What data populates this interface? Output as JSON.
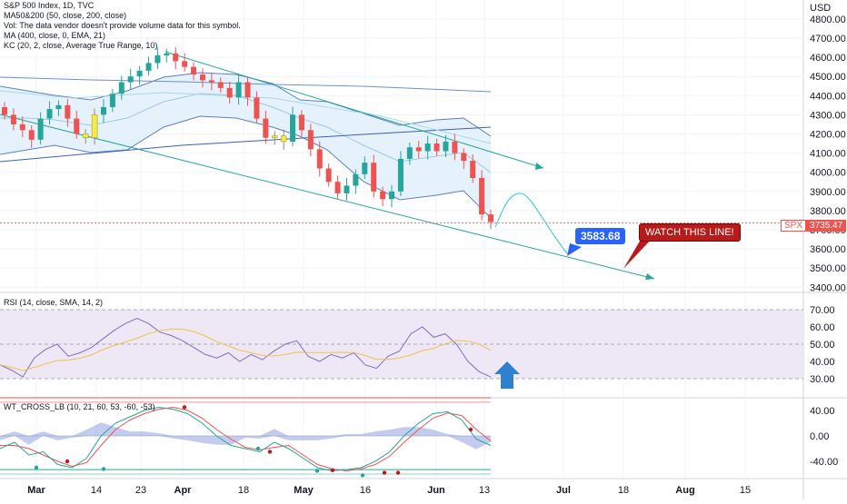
{
  "header": {
    "symbol_line": "S&P 500 Index, 1D, TVC",
    "indicators": [
      "MA50&200 (50, close, 200, close)",
      "Vol: The data vendor doesn't provide volume data for this symbol.",
      "MA (400, close, 0, EMA, 21)",
      "KC (20, 2, close, Average True Range, 10)"
    ]
  },
  "price_axis": {
    "currency": "USD",
    "ticks": [
      "4800.00",
      "4700.00",
      "4600.00",
      "4500.00",
      "4400.00",
      "4300.00",
      "4200.00",
      "4100.00",
      "4000.00",
      "3900.00",
      "3800.00",
      "3700.00",
      "3600.00",
      "3500.00",
      "3400.00"
    ]
  },
  "last_price": {
    "symbol": "SPX",
    "value": "3735.47"
  },
  "annotations": {
    "target_price": "3583.68",
    "watch_text": "WATCH THIS LINE!"
  },
  "rsi_panel": {
    "label": "RSI (14, close, SMA, 14, 2)",
    "ticks": [
      "70.00",
      "60.00",
      "50.00",
      "40.00",
      "30.00"
    ]
  },
  "wt_panel": {
    "label": "WT_CROSS_LB (10, 21, 60, 53, -60, -53)",
    "ticks": [
      "40.00",
      "0.00",
      "-40.00"
    ]
  },
  "time_axis": {
    "labels": [
      "Mar",
      "14",
      "23",
      "Apr",
      "18",
      "May",
      "16",
      "Jun",
      "13",
      "Jul",
      "18",
      "Aug",
      "15"
    ]
  },
  "colors": {
    "up": "#26a69a",
    "down": "#ef5350",
    "highlight": "#f5e94b",
    "channel": "#26a69a",
    "band_line": "#5b7fc7",
    "band_fill": "#e3f1fb",
    "rsi_line": "#7e6fc1",
    "rsi_fill": "#ede7f6",
    "rsi_ma": "#f5c14b",
    "target_box": "#2962ff",
    "watch_box": "#b71c1c"
  },
  "chart_data": [
    {
      "type": "candlestick",
      "title": "S&P 500 Index, 1D, TVC",
      "ylabel": "USD",
      "ylim": [
        3380,
        4850
      ],
      "x": [
        "Mar",
        "14",
        "23",
        "Apr",
        "18",
        "May",
        "16",
        "Jun",
        "13",
        "Jul",
        "18",
        "Aug",
        "15"
      ],
      "last_value": 3735.47,
      "closes_approx": [
        4300,
        4250,
        4220,
        4170,
        4280,
        4330,
        4350,
        4280,
        4200,
        4180,
        4300,
        4340,
        4410,
        4470,
        4500,
        4530,
        4570,
        4610,
        4620,
        4580,
        4550,
        4510,
        4480,
        4470,
        4440,
        4390,
        4470,
        4390,
        4280,
        4180,
        4190,
        4160,
        4300,
        4220,
        4120,
        4020,
        3950,
        3890,
        3930,
        3990,
        4050,
        3900,
        3860,
        3900,
        4070,
        4130,
        4110,
        4150,
        4110,
        4160,
        4100,
        4060,
        3970,
        3780,
        3740
      ],
      "channel_lines": [
        {
          "from": [
            "Mar",
            4480
          ],
          "to": [
            "Jun",
            3560
          ]
        },
        {
          "from": [
            "23",
            4610
          ],
          "to": [
            "Jun",
            4070
          ]
        }
      ],
      "projection_target": 3583.68,
      "annotation": "WATCH THIS LINE!"
    },
    {
      "type": "line",
      "title": "RSI (14, close, SMA, 14, 2)",
      "ylim": [
        25,
        75
      ],
      "series": [
        {
          "values": [
            38,
            35,
            31,
            42,
            47,
            50,
            43,
            45,
            48,
            53,
            58,
            62,
            65,
            62,
            57,
            55,
            52,
            48,
            44,
            42,
            45,
            40,
            44,
            41,
            46,
            50,
            52,
            43,
            40,
            44,
            42,
            45,
            38,
            36,
            43,
            46,
            56,
            60,
            54,
            56,
            50,
            40,
            34,
            31
          ]
        }
      ]
    },
    {
      "type": "line",
      "title": "WT_CROSS_LB (10, 21, 60, 53, -60, -53)",
      "ylim": [
        -60,
        60
      ],
      "series": [
        {
          "values": [
            -20,
            -10,
            -30,
            -25,
            -45,
            -50,
            -35,
            0,
            20,
            30,
            40,
            45,
            42,
            35,
            20,
            0,
            -15,
            -20,
            -25,
            -10,
            -20,
            -35,
            -50,
            -55,
            -53,
            -50,
            -40,
            -25,
            0,
            20,
            35,
            38,
            25,
            -5,
            -15
          ]
        },
        {
          "values": [
            -15,
            -15,
            -20,
            -30,
            -40,
            -48,
            -42,
            -15,
            10,
            25,
            35,
            42,
            45,
            40,
            28,
            10,
            -5,
            -18,
            -22,
            -18,
            -15,
            -30,
            -45,
            -52,
            -55,
            -52,
            -45,
            -32,
            -10,
            10,
            28,
            36,
            32,
            10,
            -8
          ]
        }
      ]
    }
  ]
}
